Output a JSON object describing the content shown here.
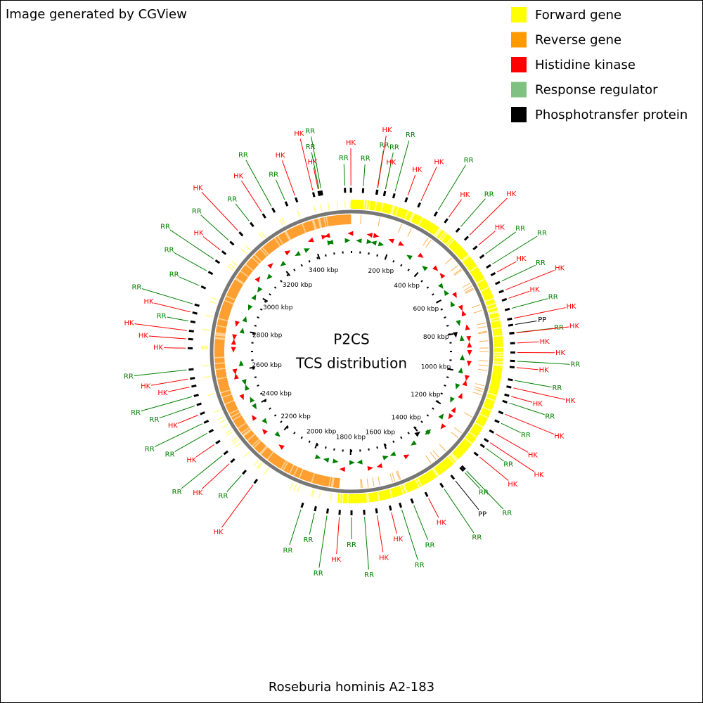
{
  "header": {
    "title": "Image generated by CGView"
  },
  "legend": [
    {
      "label": "Forward gene",
      "color": "#ffff00"
    },
    {
      "label": "Reverse gene",
      "color": "#ff9900"
    },
    {
      "label": "Histidine kinase",
      "color": "#ff0000"
    },
    {
      "label": "Response regulator",
      "color": "#80c080"
    },
    {
      "label": "Phosphotransfer protein",
      "color": "#000000"
    }
  ],
  "center": {
    "title": "P2CS",
    "subtitle": "TCS distribution"
  },
  "caption": "Roseburia hominis A2-183",
  "genome_length_kbp": 3590,
  "ticks": [
    {
      "value": 200,
      "label": "200 kbp"
    },
    {
      "value": 400,
      "label": "400 kbp"
    },
    {
      "value": 600,
      "label": "600 kbp"
    },
    {
      "value": 800,
      "label": "800 kbp"
    },
    {
      "value": 1000,
      "label": "1000 kbp"
    },
    {
      "value": 1200,
      "label": "1200 kbp"
    },
    {
      "value": 1400,
      "label": "1400 kbp"
    },
    {
      "value": 1600,
      "label": "1600 kbp"
    },
    {
      "value": 1800,
      "label": "1800 kbp"
    },
    {
      "value": 2000,
      "label": "2000 kbp"
    },
    {
      "value": 2200,
      "label": "2200 kbp"
    },
    {
      "value": 2400,
      "label": "2400 kbp"
    },
    {
      "value": 2600,
      "label": "2600 kbp"
    },
    {
      "value": 2800,
      "label": "2800 kbp"
    },
    {
      "value": 3000,
      "label": "3000 kbp"
    },
    {
      "value": 3200,
      "label": "3200 kbp"
    },
    {
      "value": 3400,
      "label": "3400 kbp"
    }
  ],
  "feature_colors": {
    "HK": "#ff0000",
    "RR": "#008000",
    "PP": "#000000"
  },
  "features": [
    {
      "label": "RR",
      "position_kbp": 41
    },
    {
      "label": "RR",
      "position_kbp": 90
    },
    {
      "label": "HK",
      "position_kbp": 91
    },
    {
      "label": "HK",
      "position_kbp": 118
    },
    {
      "label": "RR",
      "position_kbp": 118
    },
    {
      "label": "RR",
      "position_kbp": 152
    },
    {
      "label": "HK",
      "position_kbp": 198
    },
    {
      "label": "HK",
      "position_kbp": 247
    },
    {
      "label": "RR",
      "position_kbp": 314
    },
    {
      "label": "HK",
      "position_kbp": 358
    },
    {
      "label": "RR",
      "position_kbp": 411
    },
    {
      "label": "HK",
      "position_kbp": 453
    },
    {
      "label": "HK",
      "position_kbp": 499
    },
    {
      "label": "RR",
      "position_kbp": 538
    },
    {
      "label": "RR",
      "position_kbp": 580
    },
    {
      "label": "HK",
      "position_kbp": 612
    },
    {
      "label": "RR",
      "position_kbp": 647
    },
    {
      "label": "HK",
      "position_kbp": 680
    },
    {
      "label": "HK",
      "position_kbp": 711
    },
    {
      "label": "RR",
      "position_kbp": 747
    },
    {
      "label": "HK",
      "position_kbp": 782
    },
    {
      "label": "PP",
      "position_kbp": 804
    },
    {
      "label": "RR",
      "position_kbp": 832
    },
    {
      "label": "HK",
      "position_kbp": 833
    },
    {
      "label": "HK",
      "position_kbp": 868
    },
    {
      "label": "HK",
      "position_kbp": 901
    },
    {
      "label": "RR",
      "position_kbp": 931
    },
    {
      "label": "HK",
      "position_kbp": 953
    },
    {
      "label": "RR",
      "position_kbp": 998
    },
    {
      "label": "HK",
      "position_kbp": 1024
    },
    {
      "label": "HK",
      "position_kbp": 1054
    },
    {
      "label": "RR",
      "position_kbp": 1078
    },
    {
      "label": "HK",
      "position_kbp": 1119
    },
    {
      "label": "RR",
      "position_kbp": 1153
    },
    {
      "label": "HK",
      "position_kbp": 1194
    },
    {
      "label": "HK",
      "position_kbp": 1230
    },
    {
      "label": "RR",
      "position_kbp": 1254
    },
    {
      "label": "HK",
      "position_kbp": 1291
    },
    {
      "label": "RR",
      "position_kbp": 1357
    },
    {
      "label": "RR",
      "position_kbp": 1365
    },
    {
      "label": "PP",
      "position_kbp": 1408
    },
    {
      "label": "RR",
      "position_kbp": 1456
    },
    {
      "label": "HK",
      "position_kbp": 1519
    },
    {
      "label": "RR",
      "position_kbp": 1575
    },
    {
      "label": "RR",
      "position_kbp": 1619
    },
    {
      "label": "HK",
      "position_kbp": 1656
    },
    {
      "label": "HK",
      "position_kbp": 1706
    },
    {
      "label": "RR",
      "position_kbp": 1750
    },
    {
      "label": "RR",
      "position_kbp": 1795
    },
    {
      "label": "HK",
      "position_kbp": 1837
    },
    {
      "label": "RR",
      "position_kbp": 1880
    },
    {
      "label": "RR",
      "position_kbp": 1924
    },
    {
      "label": "RR",
      "position_kbp": 1972
    },
    {
      "label": "HK",
      "position_kbp": 2158
    },
    {
      "label": "RR",
      "position_kbp": 2210
    },
    {
      "label": "HK",
      "position_kbp": 2268
    },
    {
      "label": "RR",
      "position_kbp": 2305
    },
    {
      "label": "HK",
      "position_kbp": 2352
    },
    {
      "label": "RR",
      "position_kbp": 2398
    },
    {
      "label": "RR",
      "position_kbp": 2435
    },
    {
      "label": "HK",
      "position_kbp": 2468
    },
    {
      "label": "RR",
      "position_kbp": 2502
    },
    {
      "label": "RR",
      "position_kbp": 2535
    },
    {
      "label": "HK",
      "position_kbp": 2569
    },
    {
      "label": "HK",
      "position_kbp": 2597
    },
    {
      "label": "RR",
      "position_kbp": 2629
    },
    {
      "label": "HK",
      "position_kbp": 2704
    },
    {
      "label": "HK",
      "position_kbp": 2736
    },
    {
      "label": "HK",
      "position_kbp": 2765
    },
    {
      "label": "RR",
      "position_kbp": 2798
    },
    {
      "label": "HK",
      "position_kbp": 2830
    },
    {
      "label": "RR",
      "position_kbp": 2859
    },
    {
      "label": "RR",
      "position_kbp": 2926
    },
    {
      "label": "RR",
      "position_kbp": 2983
    },
    {
      "label": "RR",
      "position_kbp": 3030
    },
    {
      "label": "HK",
      "position_kbp": 3069
    },
    {
      "label": "RR",
      "position_kbp": 3113
    },
    {
      "label": "HK",
      "position_kbp": 3159
    },
    {
      "label": "RR",
      "position_kbp": 3210
    },
    {
      "label": "HK",
      "position_kbp": 3263
    },
    {
      "label": "RR",
      "position_kbp": 3302
    },
    {
      "label": "RR",
      "position_kbp": 3353
    },
    {
      "label": "HK",
      "position_kbp": 3391
    },
    {
      "label": "HK",
      "position_kbp": 3455
    },
    {
      "label": "HK",
      "position_kbp": 3474
    },
    {
      "label": "RR",
      "position_kbp": 3477
    },
    {
      "label": "RR",
      "position_kbp": 3484
    },
    {
      "label": "RR",
      "position_kbp": 3567
    },
    {
      "label": "HK",
      "position_kbp": 3588
    }
  ]
}
